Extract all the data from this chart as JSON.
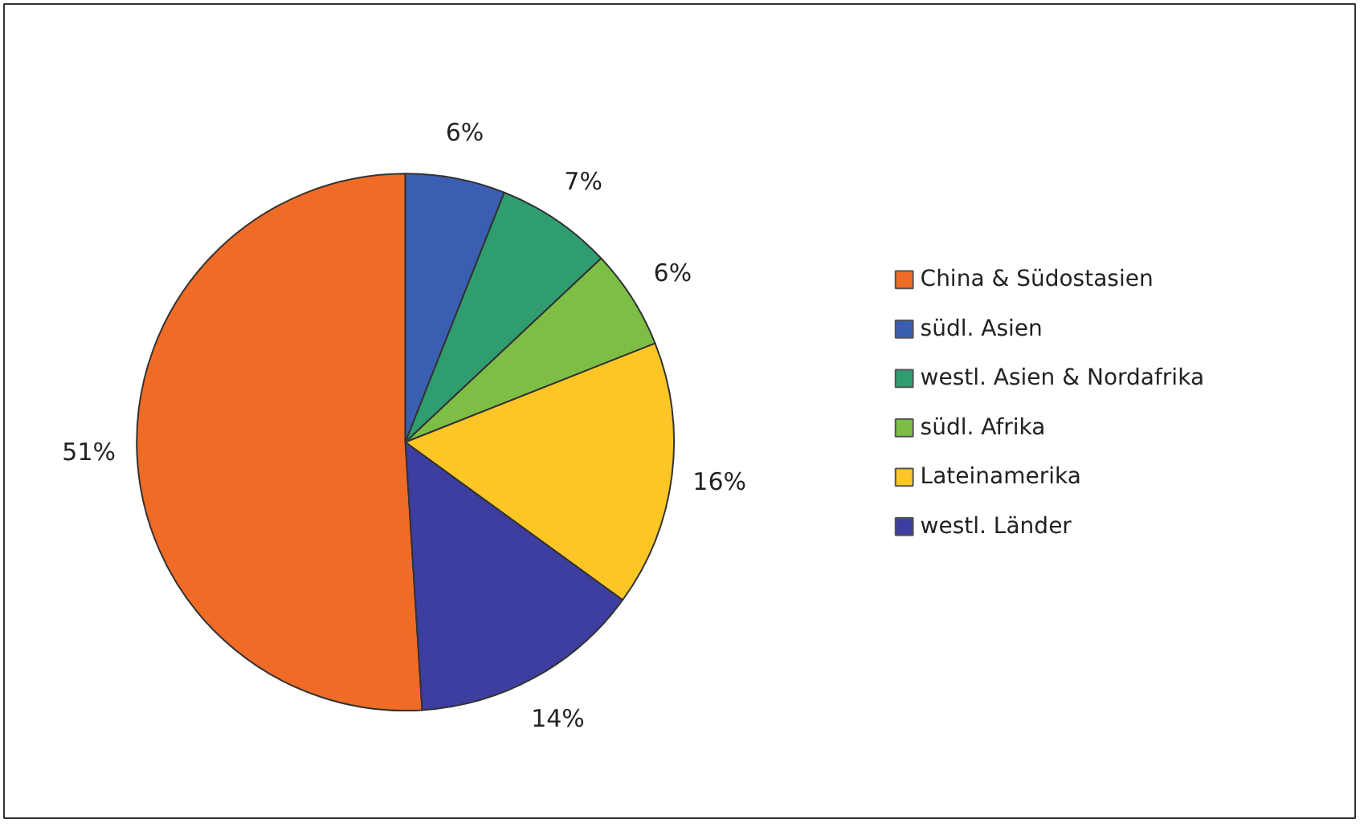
{
  "chart_data": {
    "type": "pie",
    "categories": [
      "China & Südostasien",
      "südl. Asien",
      "westl. Asien & Nordafrika",
      "südl. Afrika",
      "Lateinamerika",
      "westl. Länder"
    ],
    "values": [
      51,
      6,
      7,
      6,
      16,
      14
    ],
    "colors": [
      "#ef6b26",
      "#3a5eb2",
      "#2f9d70",
      "#7dbf45",
      "#fcc627",
      "#3d3ea0"
    ],
    "value_labels": [
      "51%",
      "6%",
      "7%",
      "6%",
      "16%",
      "14%"
    ],
    "legend": "right"
  }
}
